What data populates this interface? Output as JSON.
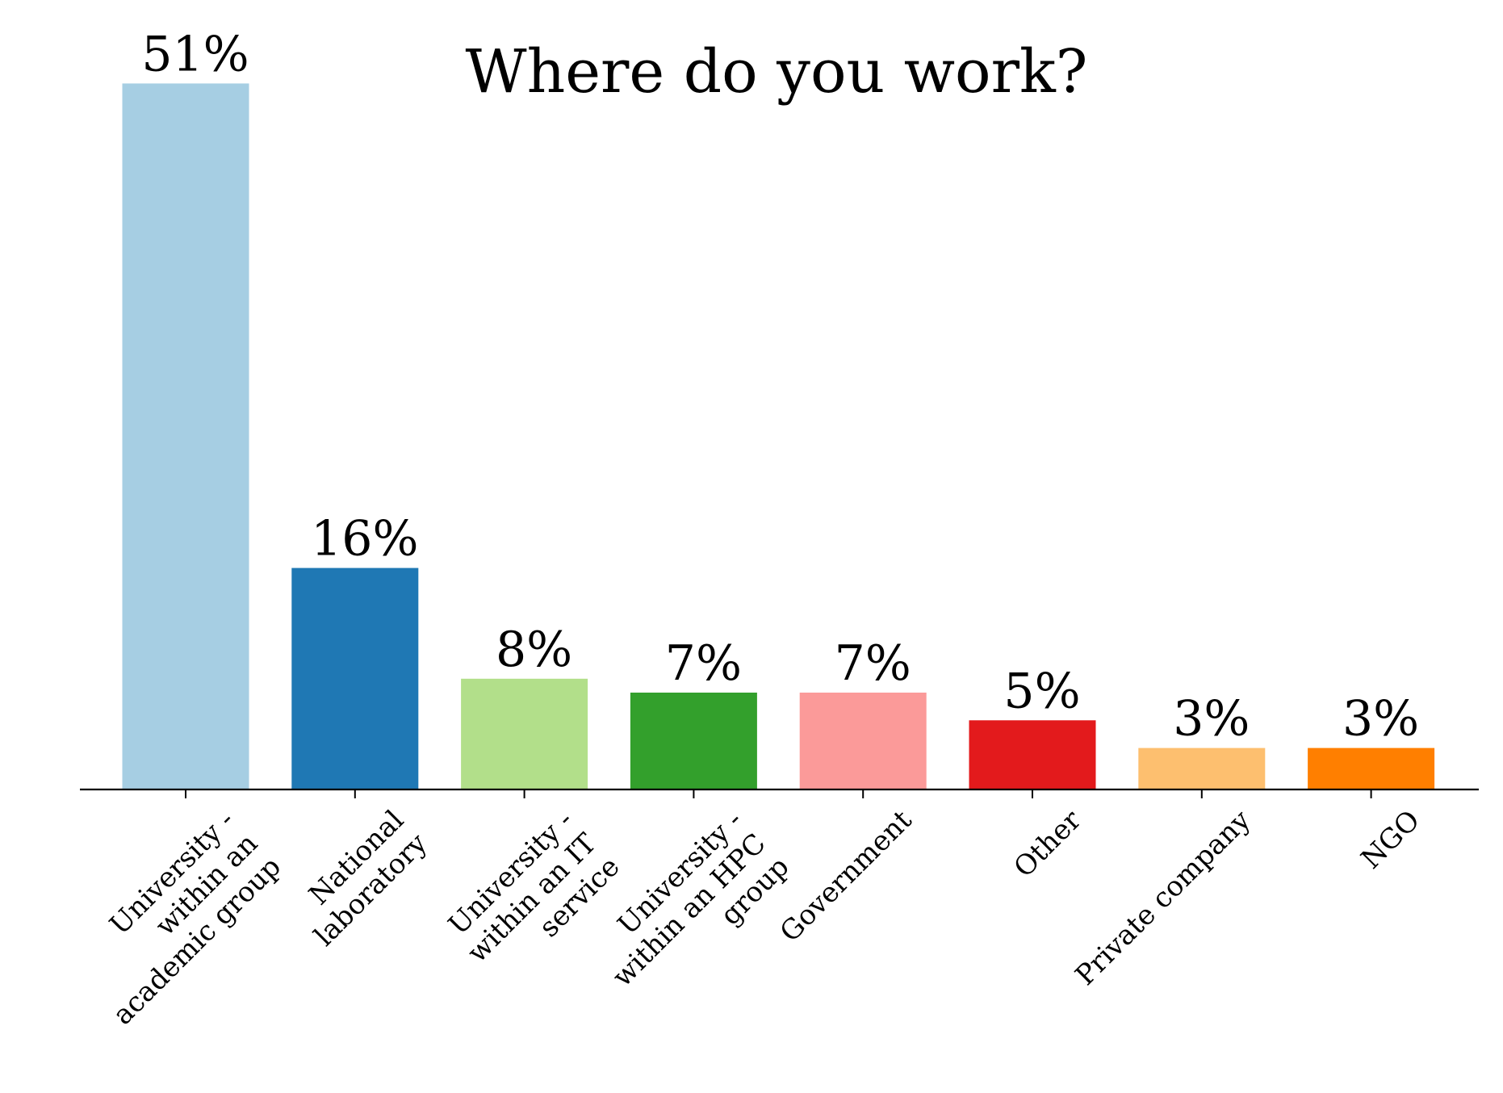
{
  "chart_data": {
    "type": "bar",
    "title": "Where do you work?",
    "xlabel": "",
    "ylabel": "",
    "ylim": [
      0,
      54
    ],
    "grid": false,
    "legend": "none",
    "categories": [
      [
        "University -",
        "within an",
        "academic group"
      ],
      [
        "National",
        "laboratory"
      ],
      [
        "University -",
        "within an IT",
        "service"
      ],
      [
        "University -",
        "within an HPC",
        "group"
      ],
      [
        "Government"
      ],
      [
        "Other"
      ],
      [
        "Private company"
      ],
      [
        "NGO"
      ]
    ],
    "values": [
      51,
      16,
      8,
      7,
      7,
      5,
      3,
      3
    ],
    "value_labels": [
      "51%",
      "16%",
      "8%",
      "7%",
      "7%",
      "5%",
      "3%",
      "3%"
    ],
    "colors": [
      "#a6cee3",
      "#1f78b4",
      "#b2df8a",
      "#33a02c",
      "#fb9a99",
      "#e31a1c",
      "#fdbf6f",
      "#ff7f00"
    ]
  }
}
